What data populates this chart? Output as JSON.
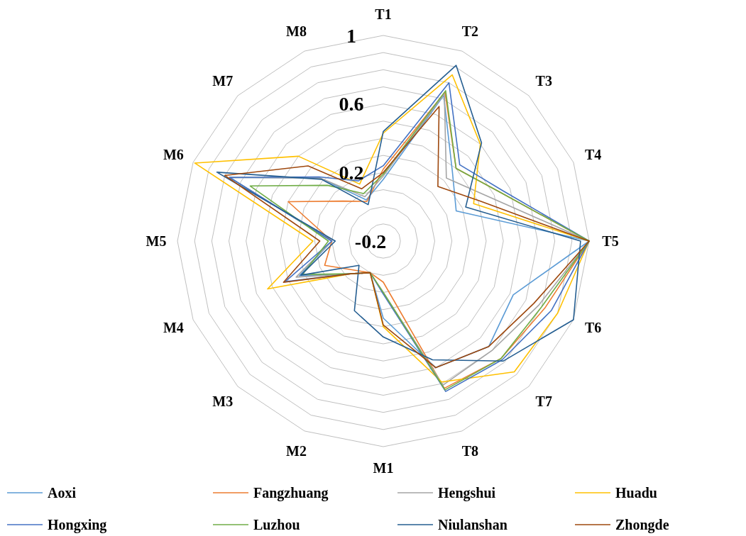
{
  "chart_data": {
    "type": "radar",
    "categories": [
      "T1",
      "T2",
      "T3",
      "T4",
      "T5",
      "T6",
      "T7",
      "T8",
      "M1",
      "M2",
      "M3",
      "M4",
      "M5",
      "M6",
      "M7",
      "M8"
    ],
    "ylim": [
      -0.2,
      1
    ],
    "yticks": [
      -0.2,
      0.2,
      0.6,
      1
    ],
    "grid": true,
    "legend": "bottom",
    "series": [
      {
        "name": "Aoxi",
        "color": "#5b9bd5",
        "values": [
          0.16,
          0.72,
          0.37,
          0.26,
          1.0,
          0.62,
          0.67,
          0.6,
          0.25,
          0.0,
          0.07,
          0.33,
          0.1,
          0.77,
          0.32,
          0.06
        ]
      },
      {
        "name": "Fangzhuang",
        "color": "#ed7d31",
        "values": [
          0.22,
          0.74,
          0.4,
          0.54,
          1.0,
          0.82,
          0.77,
          0.73,
          0.04,
          0.0,
          0.04,
          0.17,
          0.1,
          0.4,
          0.13,
          0.05
        ]
      },
      {
        "name": "Hengshui",
        "color": "#a5a5a5",
        "values": [
          0.18,
          0.73,
          0.32,
          0.47,
          1.0,
          0.78,
          0.7,
          0.71,
          0.1,
          0.0,
          0.07,
          0.35,
          0.1,
          0.77,
          0.32,
          0.08
        ]
      },
      {
        "name": "Huadu",
        "color": "#ffc000",
        "values": [
          0.43,
          0.85,
          0.6,
          0.37,
          1.0,
          0.9,
          0.88,
          0.69,
          0.3,
          0.0,
          0.07,
          0.53,
          0.21,
          0.99,
          0.5,
          0.16
        ]
      },
      {
        "name": "Hongxing",
        "color": "#4472c4",
        "values": [
          0.24,
          0.8,
          0.43,
          0.56,
          1.0,
          0.86,
          0.78,
          0.75,
          0.11,
          0.0,
          0.07,
          0.42,
          0.1,
          0.77,
          0.33,
          0.18
        ]
      },
      {
        "name": "Luzhou",
        "color": "#70ad47",
        "values": [
          0.19,
          0.75,
          0.4,
          0.54,
          1.0,
          0.8,
          0.77,
          0.74,
          0.1,
          0.0,
          0.07,
          0.31,
          0.12,
          0.64,
          0.26,
          0.1
        ]
      },
      {
        "name": "Niulanshan",
        "color": "#255e91",
        "values": [
          0.44,
          0.91,
          0.61,
          0.32,
          0.95,
          1.0,
          0.79,
          0.55,
          0.36,
          0.24,
          0.0,
          0.32,
          0.08,
          0.85,
          0.31,
          0.03
        ]
      },
      {
        "name": "Zhongde",
        "color": "#9e480e",
        "values": [
          0.2,
          0.65,
          0.25,
          0.41,
          1.0,
          0.75,
          0.67,
          0.6,
          0.29,
          0.0,
          0.07,
          0.43,
          0.17,
          0.8,
          0.42,
          0.13
        ]
      }
    ]
  }
}
